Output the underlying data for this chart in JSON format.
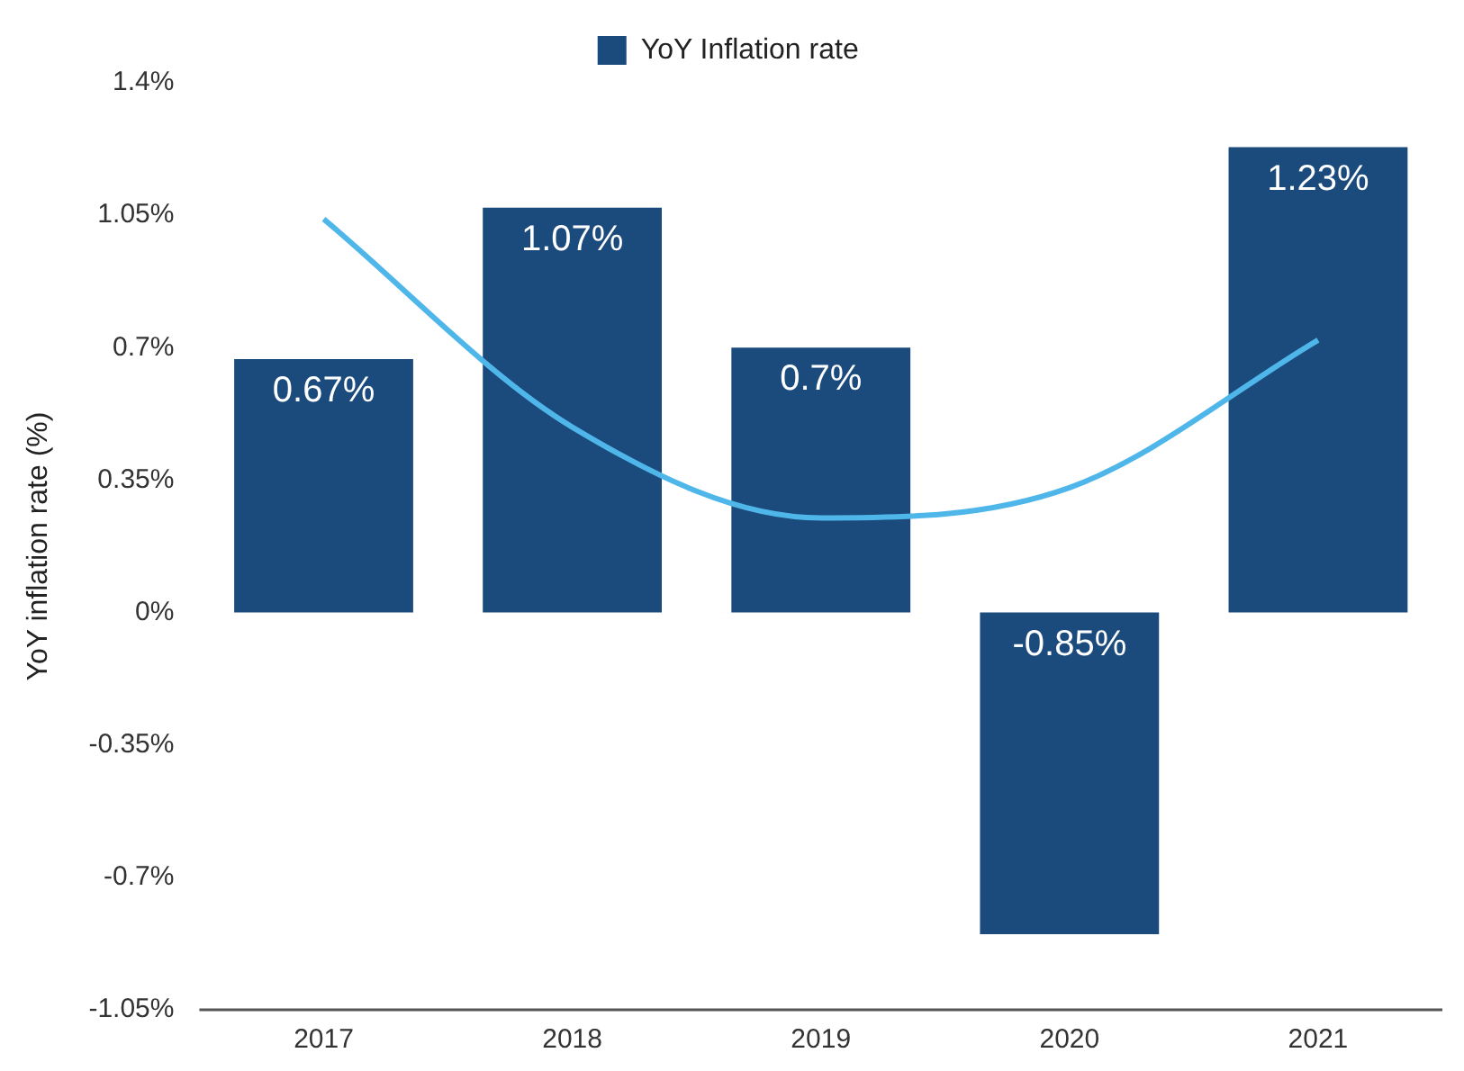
{
  "chart_data": {
    "type": "bar",
    "ylabel": "YoY inflation rate (%)",
    "categories": [
      "2017",
      "2018",
      "2019",
      "2020",
      "2021"
    ],
    "series": [
      {
        "name": "YoY Inflation rate",
        "color": "#1b4a7c",
        "values": [
          0.67,
          1.07,
          0.7,
          -0.85,
          1.23
        ],
        "value_labels": [
          "0.67%",
          "1.07%",
          "0.7%",
          "-0.85%",
          "1.23%"
        ]
      },
      {
        "type": "line",
        "color": "#4fb6ea",
        "values": [
          1.04,
          0.49,
          0.25,
          0.33,
          0.72
        ]
      }
    ],
    "ylim": [
      -1.05,
      1.4
    ],
    "yticks": [
      {
        "value": -1.05,
        "label": "-1.05%"
      },
      {
        "value": -0.7,
        "label": "-0.7%"
      },
      {
        "value": -0.35,
        "label": "-0.35%"
      },
      {
        "value": 0,
        "label": "0%"
      },
      {
        "value": 0.35,
        "label": "0.35%"
      },
      {
        "value": 0.7,
        "label": "0.7%"
      },
      {
        "value": 1.05,
        "label": "1.05%"
      },
      {
        "value": 1.4,
        "label": "1.4%"
      }
    ],
    "grid": false,
    "legend": "top"
  }
}
